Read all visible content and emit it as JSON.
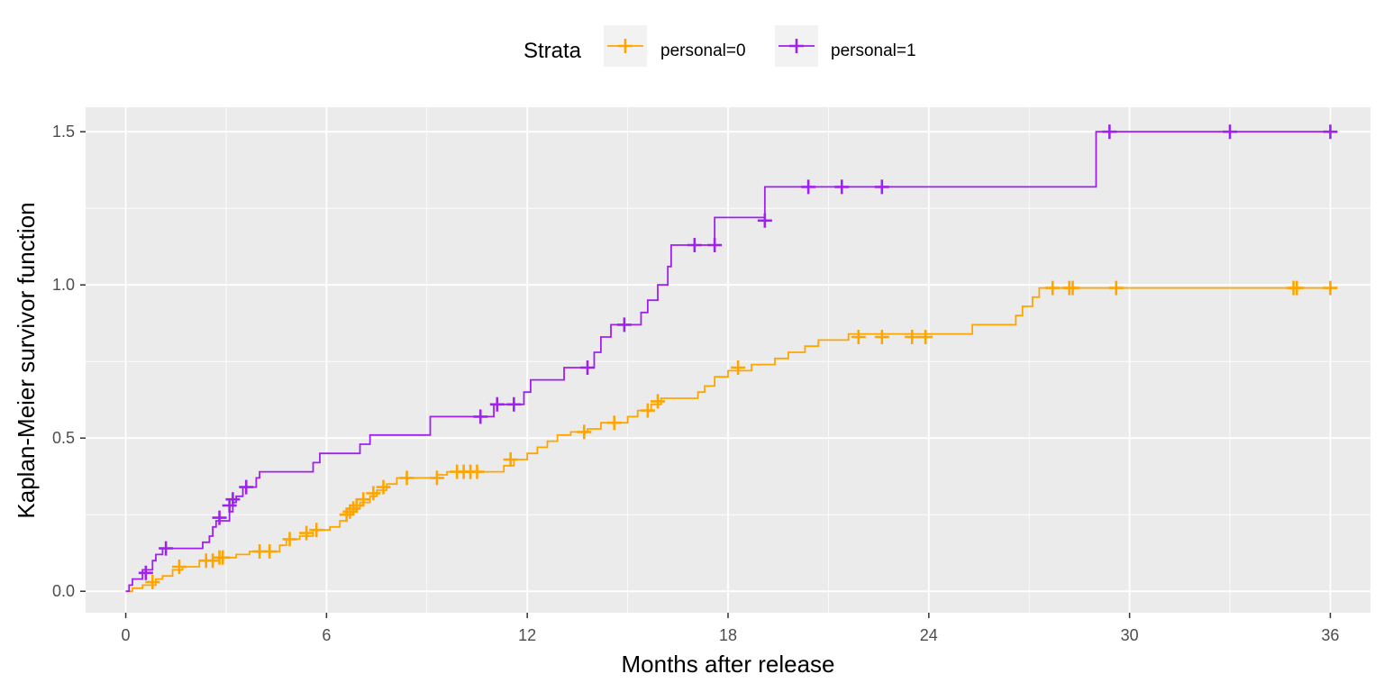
{
  "chart_data": {
    "type": "line",
    "title": "",
    "xlabel": "Months after release",
    "ylabel": "Kaplan-Meier survivor function",
    "xlim": [
      -1.2,
      37.2
    ],
    "ylim": [
      -0.07,
      1.58
    ],
    "x_ticks": [
      0,
      6,
      12,
      18,
      24,
      30,
      36
    ],
    "y_ticks": [
      0.0,
      0.5,
      1.0,
      1.5
    ],
    "x_tick_labels": [
      "0",
      "6",
      "12",
      "18",
      "24",
      "30",
      "36"
    ],
    "y_tick_labels": [
      "0.0",
      "0.5",
      "1.0",
      "1.5"
    ],
    "grid": true,
    "legend": {
      "title": "Strata",
      "position": "top"
    },
    "series": [
      {
        "name": "personal=0",
        "color": "#FFA500",
        "steps": [
          [
            0,
            0
          ],
          [
            0.2,
            0.01
          ],
          [
            0.5,
            0.02
          ],
          [
            0.9,
            0.04
          ],
          [
            1.1,
            0.05
          ],
          [
            1.4,
            0.07
          ],
          [
            1.7,
            0.08
          ],
          [
            2.2,
            0.1
          ],
          [
            2.8,
            0.11
          ],
          [
            3.3,
            0.12
          ],
          [
            3.7,
            0.13
          ],
          [
            4.6,
            0.15
          ],
          [
            4.8,
            0.17
          ],
          [
            5.2,
            0.18
          ],
          [
            5.6,
            0.2
          ],
          [
            6.1,
            0.21
          ],
          [
            6.4,
            0.23
          ],
          [
            6.6,
            0.25
          ],
          [
            6.8,
            0.27
          ],
          [
            7.0,
            0.29
          ],
          [
            7.3,
            0.31
          ],
          [
            7.5,
            0.33
          ],
          [
            7.8,
            0.35
          ],
          [
            8.1,
            0.37
          ],
          [
            9.3,
            0.38
          ],
          [
            9.6,
            0.39
          ],
          [
            11.3,
            0.41
          ],
          [
            11.6,
            0.43
          ],
          [
            12.0,
            0.45
          ],
          [
            12.3,
            0.47
          ],
          [
            12.6,
            0.49
          ],
          [
            12.9,
            0.51
          ],
          [
            13.3,
            0.52
          ],
          [
            13.8,
            0.53
          ],
          [
            14.2,
            0.55
          ],
          [
            15.0,
            0.57
          ],
          [
            15.3,
            0.59
          ],
          [
            15.7,
            0.61
          ],
          [
            16.0,
            0.63
          ],
          [
            17.1,
            0.65
          ],
          [
            17.3,
            0.67
          ],
          [
            17.6,
            0.7
          ],
          [
            18.0,
            0.72
          ],
          [
            18.7,
            0.74
          ],
          [
            19.4,
            0.76
          ],
          [
            19.8,
            0.78
          ],
          [
            20.3,
            0.8
          ],
          [
            20.7,
            0.82
          ],
          [
            21.6,
            0.84
          ],
          [
            25.3,
            0.87
          ],
          [
            26.6,
            0.9
          ],
          [
            26.8,
            0.93
          ],
          [
            27.1,
            0.96
          ],
          [
            27.3,
            0.99
          ]
        ],
        "end_x": 36,
        "censored": [
          [
            0.8,
            0.03
          ],
          [
            1.6,
            0.08
          ],
          [
            2.4,
            0.1
          ],
          [
            2.6,
            0.1
          ],
          [
            2.8,
            0.11
          ],
          [
            2.9,
            0.11
          ],
          [
            4.0,
            0.13
          ],
          [
            4.3,
            0.13
          ],
          [
            4.9,
            0.17
          ],
          [
            5.4,
            0.19
          ],
          [
            5.7,
            0.2
          ],
          [
            6.6,
            0.25
          ],
          [
            6.7,
            0.26
          ],
          [
            6.8,
            0.27
          ],
          [
            6.9,
            0.28
          ],
          [
            7.1,
            0.3
          ],
          [
            7.4,
            0.32
          ],
          [
            7.7,
            0.34
          ],
          [
            8.4,
            0.37
          ],
          [
            9.3,
            0.37
          ],
          [
            9.9,
            0.39
          ],
          [
            10.1,
            0.39
          ],
          [
            10.3,
            0.39
          ],
          [
            10.5,
            0.39
          ],
          [
            11.5,
            0.43
          ],
          [
            13.7,
            0.52
          ],
          [
            14.6,
            0.55
          ],
          [
            15.6,
            0.59
          ],
          [
            15.9,
            0.62
          ],
          [
            18.3,
            0.73
          ],
          [
            21.9,
            0.83
          ],
          [
            22.6,
            0.83
          ],
          [
            23.5,
            0.83
          ],
          [
            23.9,
            0.83
          ],
          [
            27.7,
            0.99
          ],
          [
            28.2,
            0.99
          ],
          [
            28.3,
            0.99
          ],
          [
            29.6,
            0.99
          ],
          [
            34.9,
            0.99
          ],
          [
            35.0,
            0.99
          ],
          [
            36.0,
            0.99
          ]
        ]
      },
      {
        "name": "personal=1",
        "color": "#A020F0",
        "steps": [
          [
            0,
            0
          ],
          [
            0.1,
            0.02
          ],
          [
            0.2,
            0.04
          ],
          [
            0.5,
            0.07
          ],
          [
            0.8,
            0.1
          ],
          [
            0.9,
            0.12
          ],
          [
            1.1,
            0.14
          ],
          [
            2.3,
            0.16
          ],
          [
            2.5,
            0.18
          ],
          [
            2.6,
            0.21
          ],
          [
            2.7,
            0.23
          ],
          [
            3.1,
            0.26
          ],
          [
            3.2,
            0.29
          ],
          [
            3.3,
            0.31
          ],
          [
            3.5,
            0.34
          ],
          [
            3.9,
            0.37
          ],
          [
            4.0,
            0.39
          ],
          [
            5.6,
            0.42
          ],
          [
            5.8,
            0.45
          ],
          [
            7.0,
            0.48
          ],
          [
            7.3,
            0.51
          ],
          [
            9.1,
            0.57
          ],
          [
            11.0,
            0.61
          ],
          [
            11.9,
            0.65
          ],
          [
            12.1,
            0.69
          ],
          [
            13.1,
            0.73
          ],
          [
            14.0,
            0.78
          ],
          [
            14.2,
            0.83
          ],
          [
            14.5,
            0.87
          ],
          [
            15.4,
            0.91
          ],
          [
            15.6,
            0.95
          ],
          [
            15.9,
            1.0
          ],
          [
            16.2,
            1.06
          ],
          [
            16.3,
            1.13
          ],
          [
            17.6,
            1.22
          ],
          [
            19.1,
            1.32
          ],
          [
            29.0,
            1.5
          ]
        ],
        "end_x": 36,
        "censored": [
          [
            0.6,
            0.06
          ],
          [
            1.2,
            0.14
          ],
          [
            2.8,
            0.24
          ],
          [
            3.1,
            0.28
          ],
          [
            3.2,
            0.3
          ],
          [
            3.6,
            0.34
          ],
          [
            10.6,
            0.57
          ],
          [
            11.1,
            0.61
          ],
          [
            11.6,
            0.61
          ],
          [
            13.8,
            0.73
          ],
          [
            14.9,
            0.87
          ],
          [
            17.0,
            1.13
          ],
          [
            17.6,
            1.13
          ],
          [
            19.1,
            1.21
          ],
          [
            20.4,
            1.32
          ],
          [
            21.4,
            1.32
          ],
          [
            22.6,
            1.32
          ],
          [
            29.4,
            1.5
          ],
          [
            33.0,
            1.5
          ],
          [
            36.0,
            1.5
          ]
        ]
      }
    ]
  }
}
